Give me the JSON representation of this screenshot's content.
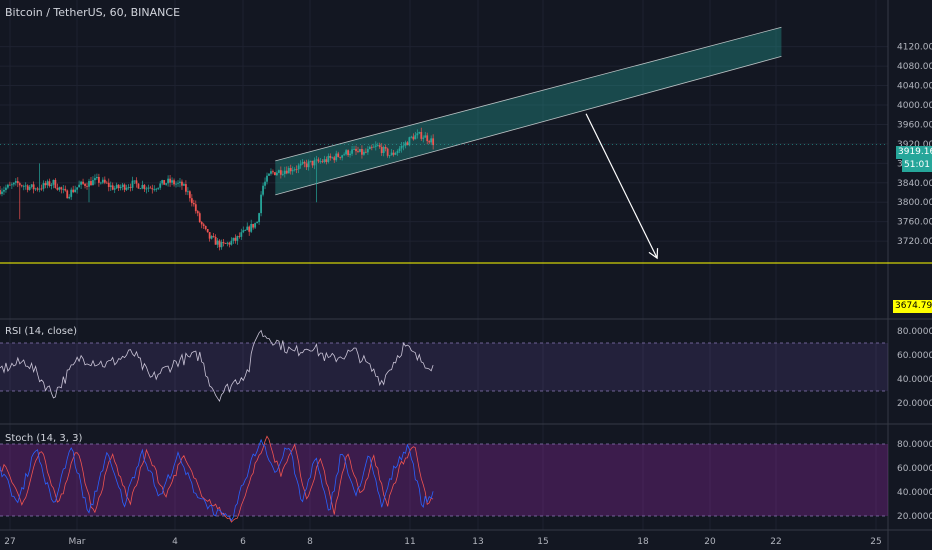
{
  "title": "Bitcoin / TetherUS, 60, BINANCE",
  "price_axis": {
    "ticks": [
      "4120.00",
      "4080.00",
      "4040.00",
      "4000.00",
      "3960.00",
      "3920.00",
      "3880.00",
      "3840.00",
      "3800.00",
      "3760.00",
      "3720.00"
    ],
    "current_price": "3919.16",
    "countdown": "51:01",
    "level_label": "3674.79"
  },
  "rsi": {
    "label": "RSI (14, close)",
    "ticks": [
      "80.0000",
      "60.0000",
      "40.0000",
      "20.0000"
    ],
    "upper_band": 70,
    "lower_band": 30
  },
  "stoch": {
    "label": "Stoch (14, 3, 3)",
    "ticks": [
      "80.0000",
      "60.0000",
      "40.0000",
      "20.0000"
    ],
    "upper_band": 80,
    "lower_band": 20
  },
  "time_axis": {
    "ticks": [
      "27",
      "Mar",
      "4",
      "6",
      "8",
      "11",
      "13",
      "15",
      "18",
      "20",
      "22",
      "25"
    ]
  },
  "colors": {
    "background": "#131722",
    "up": "#26a69a",
    "down": "#ef5350",
    "channel_fill": "#26a69a",
    "channel_line": "#ffffff",
    "level_line": "#ffff00",
    "rsi_band": "#7e57c2",
    "stoch_band": "#9c27b0",
    "k_line": "#2962ff",
    "d_line": "#ef5350",
    "arrow": "#ffffff"
  },
  "chart_data": {
    "type": "candlestick",
    "price_anchors": [
      [
        0,
        3825
      ],
      [
        0.02,
        3838
      ],
      [
        0.04,
        3828
      ],
      [
        0.06,
        3840
      ],
      [
        0.075,
        3815
      ],
      [
        0.09,
        3835
      ],
      [
        0.11,
        3845
      ],
      [
        0.13,
        3828
      ],
      [
        0.15,
        3838
      ],
      [
        0.17,
        3830
      ],
      [
        0.19,
        3842
      ],
      [
        0.205,
        3835
      ],
      [
        0.215,
        3810
      ],
      [
        0.225,
        3760
      ],
      [
        0.235,
        3728
      ],
      [
        0.25,
        3710
      ],
      [
        0.265,
        3722
      ],
      [
        0.28,
        3745
      ],
      [
        0.29,
        3760
      ],
      [
        0.295,
        3830
      ],
      [
        0.305,
        3860
      ],
      [
        0.32,
        3866
      ],
      [
        0.335,
        3872
      ],
      [
        0.35,
        3880
      ],
      [
        0.365,
        3885
      ],
      [
        0.38,
        3895
      ],
      [
        0.395,
        3905
      ],
      [
        0.41,
        3900
      ],
      [
        0.425,
        3915
      ],
      [
        0.44,
        3896
      ],
      [
        0.455,
        3918
      ],
      [
        0.465,
        3935
      ],
      [
        0.475,
        3938
      ],
      [
        0.485,
        3928
      ],
      [
        0.49,
        3919
      ]
    ],
    "channel": {
      "x1": 0.31,
      "x2": 0.88,
      "upper": [
        3885,
        4160
      ],
      "lower": [
        3815,
        4100
      ]
    },
    "level": 3674.79,
    "arrow_from": [
      0.66,
      3982
    ],
    "arrow_to": [
      0.74,
      3685
    ],
    "rsi_anchors": [
      [
        0,
        48
      ],
      [
        0.03,
        55
      ],
      [
        0.06,
        27
      ],
      [
        0.09,
        58
      ],
      [
        0.12,
        52
      ],
      [
        0.15,
        62
      ],
      [
        0.17,
        40
      ],
      [
        0.2,
        55
      ],
      [
        0.225,
        60
      ],
      [
        0.235,
        40
      ],
      [
        0.245,
        25
      ],
      [
        0.26,
        35
      ],
      [
        0.28,
        47
      ],
      [
        0.29,
        80
      ],
      [
        0.31,
        72
      ],
      [
        0.33,
        62
      ],
      [
        0.35,
        68
      ],
      [
        0.37,
        56
      ],
      [
        0.4,
        63
      ],
      [
        0.43,
        38
      ],
      [
        0.455,
        68
      ],
      [
        0.47,
        57
      ],
      [
        0.49,
        50
      ]
    ],
    "stoch_anchors": [
      [
        0,
        60
      ],
      [
        0.02,
        30
      ],
      [
        0.04,
        78
      ],
      [
        0.06,
        28
      ],
      [
        0.08,
        78
      ],
      [
        0.1,
        20
      ],
      [
        0.12,
        72
      ],
      [
        0.14,
        30
      ],
      [
        0.16,
        75
      ],
      [
        0.18,
        35
      ],
      [
        0.2,
        70
      ],
      [
        0.22,
        40
      ],
      [
        0.24,
        25
      ],
      [
        0.26,
        15
      ],
      [
        0.28,
        60
      ],
      [
        0.295,
        85
      ],
      [
        0.31,
        55
      ],
      [
        0.325,
        80
      ],
      [
        0.34,
        30
      ],
      [
        0.355,
        70
      ],
      [
        0.37,
        22
      ],
      [
        0.385,
        75
      ],
      [
        0.4,
        35
      ],
      [
        0.415,
        70
      ],
      [
        0.43,
        28
      ],
      [
        0.445,
        62
      ],
      [
        0.46,
        80
      ],
      [
        0.475,
        30
      ],
      [
        0.49,
        40
      ]
    ]
  }
}
